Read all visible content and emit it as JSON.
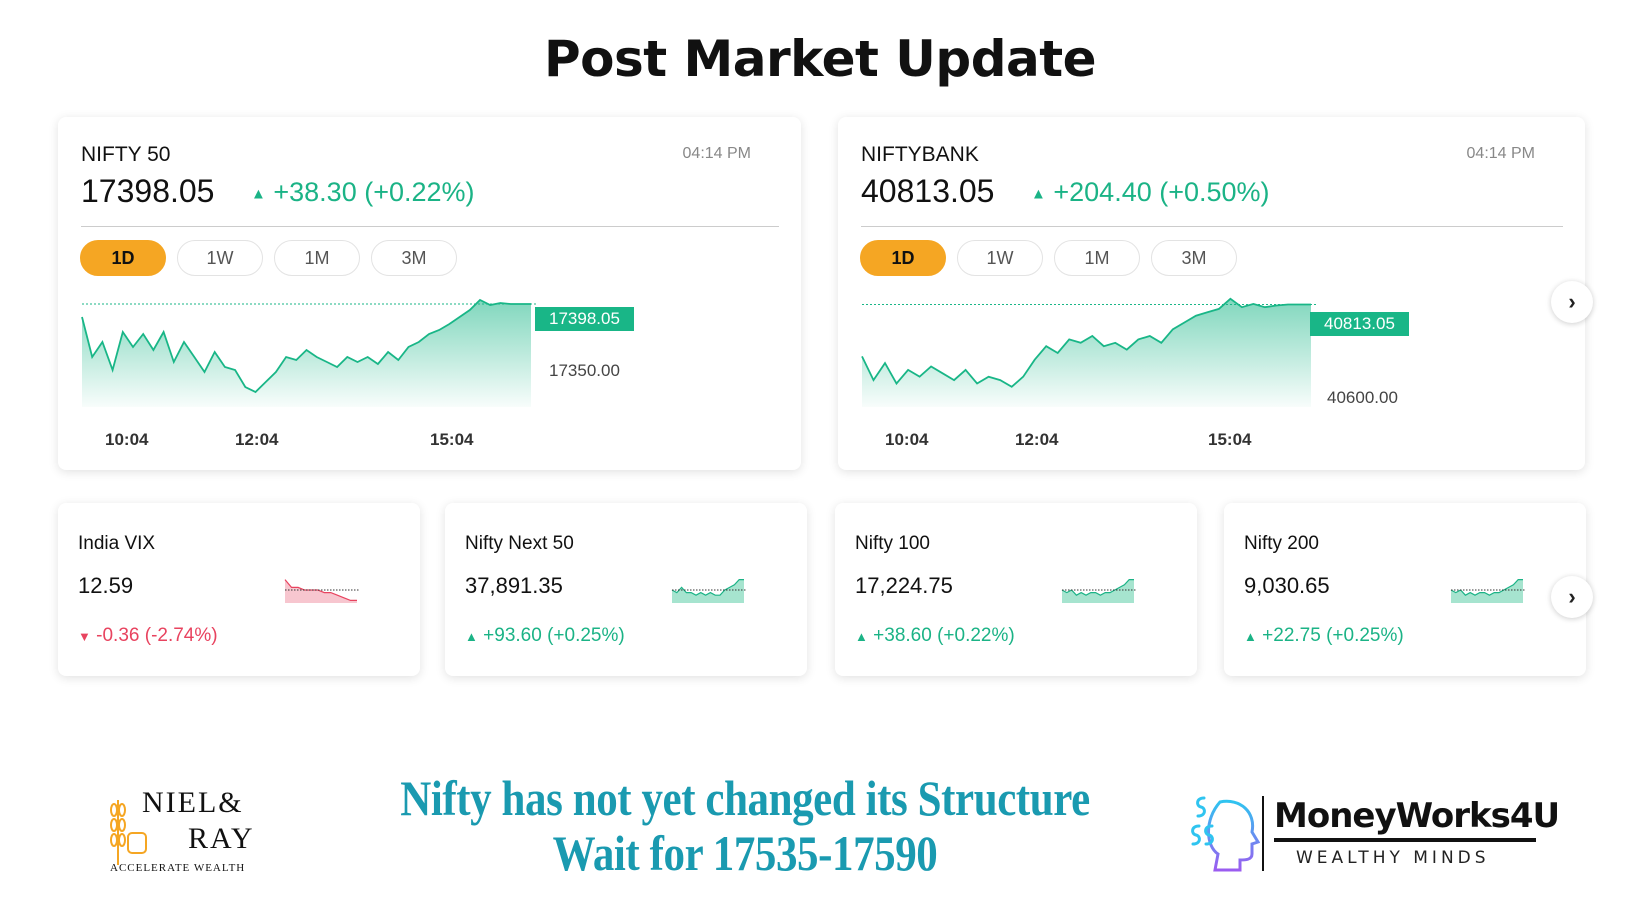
{
  "title": "Post Market Update",
  "colors": {
    "up": "#1bb386",
    "down": "#e8435f",
    "active_tab": "#f5a623",
    "message": "#1a9ab0"
  },
  "indices": [
    {
      "name": "NIFTY 50",
      "time": "04:14 PM",
      "price": "17398.05",
      "change": "+38.30 (+0.22%)",
      "direction": "up",
      "tabs": [
        "1D",
        "1W",
        "1M",
        "3M"
      ],
      "active_tab": "1D",
      "last_tag": "17398.05",
      "level_label": "17350.00",
      "chart_data": {
        "type": "area",
        "x_ticks": [
          "10:04",
          "12:04",
          "15:04"
        ],
        "values": [
          17385,
          17345,
          17360,
          17332,
          17370,
          17355,
          17368,
          17352,
          17370,
          17340,
          17360,
          17345,
          17330,
          17350,
          17335,
          17332,
          17315,
          17310,
          17320,
          17330,
          17345,
          17342,
          17352,
          17345,
          17340,
          17335,
          17345,
          17340,
          17345,
          17338,
          17350,
          17342,
          17355,
          17360,
          17368,
          17372,
          17378,
          17385,
          17392,
          17402,
          17397,
          17399,
          17398,
          17398,
          17398
        ],
        "reference": 17398.05,
        "ylim": [
          17305,
          17410
        ]
      }
    },
    {
      "name": "NIFTYBANK",
      "time": "04:14 PM",
      "price": "40813.05",
      "change": "+204.40 (+0.50%)",
      "direction": "up",
      "tabs": [
        "1D",
        "1W",
        "1M",
        "3M"
      ],
      "active_tab": "1D",
      "last_tag": "40813.05",
      "level_label": "40600.00",
      "chart_data": {
        "type": "area",
        "x_ticks": [
          "10:04",
          "12:04",
          "15:04"
        ],
        "values": [
          40660,
          40590,
          40640,
          40580,
          40620,
          40600,
          40630,
          40610,
          40590,
          40620,
          40580,
          40600,
          40590,
          40570,
          40600,
          40650,
          40690,
          40670,
          40710,
          40700,
          40720,
          40690,
          40700,
          40680,
          40710,
          40720,
          40700,
          40740,
          40760,
          40780,
          40790,
          40800,
          40830,
          40805,
          40815,
          40805,
          40810,
          40813,
          40813,
          40813
        ],
        "reference": 40813.05,
        "ylim": [
          40540,
          40850
        ]
      }
    }
  ],
  "cards": [
    {
      "name": "India VIX",
      "value": "12.59",
      "change": "-0.36 (-2.74%)",
      "direction": "down",
      "spark": [
        9,
        6,
        6,
        5,
        5,
        5,
        4,
        4,
        3,
        2,
        1,
        1
      ]
    },
    {
      "name": "Nifty Next 50",
      "value": "37,891.35",
      "change": "+93.60 (+0.25%)",
      "direction": "up",
      "spark": [
        5,
        4,
        6,
        4,
        4,
        3,
        4,
        3,
        4,
        3,
        3,
        5,
        6,
        7,
        9,
        9
      ]
    },
    {
      "name": "Nifty 100",
      "value": "17,224.75",
      "change": "+38.60 (+0.22%)",
      "direction": "up",
      "spark": [
        5,
        4,
        5,
        3,
        4,
        3,
        4,
        4,
        3,
        4,
        4,
        5,
        6,
        7,
        9,
        9
      ]
    },
    {
      "name": "Nifty 200",
      "value": "9,030.65",
      "change": "+22.75 (+0.25%)",
      "direction": "up",
      "spark": [
        5,
        4,
        5,
        3,
        4,
        3,
        4,
        4,
        3,
        4,
        4,
        5,
        6,
        7,
        9,
        9
      ]
    }
  ],
  "message": {
    "line1": "Nifty has not yet changed its Structure",
    "line2": "Wait for  17535-17590"
  },
  "logos": {
    "left": {
      "line1": "NIEL&",
      "line2": "RAY",
      "tagline": "ACCELERATE WEALTH"
    },
    "right": {
      "name": "MoneyWorks4U",
      "tagline": "WEALTHY MINDS"
    }
  },
  "icons": {
    "next": "chevron-right-icon",
    "up": "triangle-up-icon",
    "down": "triangle-down-icon"
  }
}
